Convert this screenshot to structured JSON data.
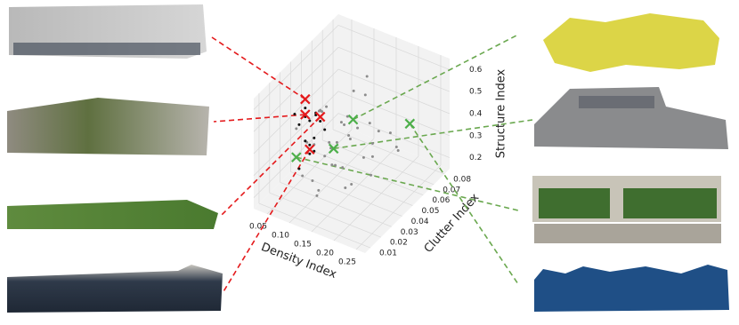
{
  "chart_data": {
    "type": "scatter3d",
    "xlabel": "Density Index",
    "ylabel": "Clutter Index",
    "zlabel": "Structure Index",
    "xlim": [
      0.02,
      0.27
    ],
    "ylim": [
      0.005,
      0.085
    ],
    "zlim": [
      0.15,
      0.65
    ],
    "xticks": [
      0.05,
      {
        "value": 0.1,
        "label": "0.10"
      },
      0.15,
      {
        "value": 0.2,
        "label": "0.20"
      },
      0.25
    ],
    "yticks": [
      0.01,
      0.02,
      0.03,
      0.04,
      0.05,
      0.06,
      0.07,
      0.08
    ],
    "zticks": [
      0.2,
      0.3,
      0.4,
      0.5,
      0.6
    ],
    "grid": true,
    "series": [
      {
        "color": "#8c8c8c",
        "marker": "dot",
        "x": [
          0.12,
          0.15,
          0.18,
          0.1,
          0.08,
          0.14,
          0.2,
          0.16,
          0.11,
          0.13,
          0.09,
          0.17,
          0.19,
          0.22,
          0.07,
          0.12,
          0.15,
          0.1,
          0.14,
          0.18,
          0.06,
          0.13,
          0.16,
          0.11,
          0.21,
          0.09,
          0.12,
          0.17,
          0.14,
          0.1,
          0.15,
          0.08,
          0.19,
          0.13,
          0.11,
          0.16,
          0.12,
          0.14,
          0.18,
          0.1
        ],
        "y": [
          0.03,
          0.04,
          0.05,
          0.02,
          0.03,
          0.06,
          0.04,
          0.03,
          0.05,
          0.02,
          0.04,
          0.06,
          0.02,
          0.05,
          0.03,
          0.07,
          0.01,
          0.06,
          0.04,
          0.03,
          0.05,
          0.05,
          0.02,
          0.03,
          0.06,
          0.07,
          0.04,
          0.04,
          0.01,
          0.05,
          0.06,
          0.02,
          0.07,
          0.03,
          0.04,
          0.05,
          0.02,
          0.03,
          0.05,
          0.04
        ],
        "z": [
          0.35,
          0.42,
          0.3,
          0.45,
          0.38,
          0.5,
          0.28,
          0.33,
          0.4,
          0.25,
          0.48,
          0.36,
          0.31,
          0.44,
          0.22,
          0.52,
          0.29,
          0.37,
          0.46,
          0.27,
          0.41,
          0.34,
          0.39,
          0.55,
          0.32,
          0.43,
          0.26,
          0.47,
          0.35,
          0.3,
          0.38,
          0.49,
          0.24,
          0.42,
          0.33,
          0.28,
          0.45,
          0.4,
          0.36,
          0.51
        ]
      },
      {
        "color": "#111111",
        "marker": "dot",
        "x": [
          0.1,
          0.11,
          0.1,
          0.12,
          0.11,
          0.1,
          0.11,
          0.12,
          0.1,
          0.11,
          0.12,
          0.1,
          0.11,
          0.1,
          0.11
        ],
        "y": [
          0.02,
          0.02,
          0.03,
          0.02,
          0.01,
          0.02,
          0.03,
          0.02,
          0.01,
          0.02,
          0.03,
          0.02,
          0.02,
          0.03,
          0.01
        ],
        "z": [
          0.6,
          0.55,
          0.52,
          0.48,
          0.58,
          0.45,
          0.5,
          0.42,
          0.62,
          0.4,
          0.47,
          0.56,
          0.44,
          0.53,
          0.38
        ]
      },
      {
        "color": "#e41a1c",
        "marker": "x",
        "x": [
          0.1,
          0.1,
          0.11,
          0.11
        ],
        "y": [
          0.02,
          0.02,
          0.03,
          0.02
        ],
        "z": [
          0.64,
          0.57,
          0.52,
          0.42
        ]
      },
      {
        "color": "#4daf4a",
        "marker": "x",
        "x": [
          0.16,
          0.08,
          0.14,
          0.24
        ],
        "y": [
          0.04,
          0.02,
          0.03,
          0.06
        ],
        "z": [
          0.5,
          0.36,
          0.4,
          0.45
        ]
      }
    ]
  }
}
